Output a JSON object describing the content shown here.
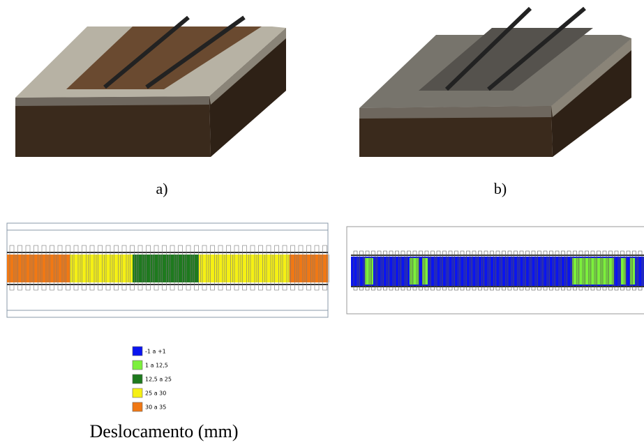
{
  "panels": [
    {
      "label": "a)"
    },
    {
      "label": "b)"
    }
  ],
  "legend": {
    "title": "Deslocamento (mm)",
    "items": [
      {
        "label": "-1 a +1",
        "color": "#0a14f0"
      },
      {
        "label": "1 a 12,5",
        "color": "#7cf03c"
      },
      {
        "label": "12,5 a 25",
        "color": "#1e7a1e"
      },
      {
        "label": "25 a 30",
        "color": "#f5f014"
      },
      {
        "label": "30 a 35",
        "color": "#f07814"
      }
    ]
  }
}
